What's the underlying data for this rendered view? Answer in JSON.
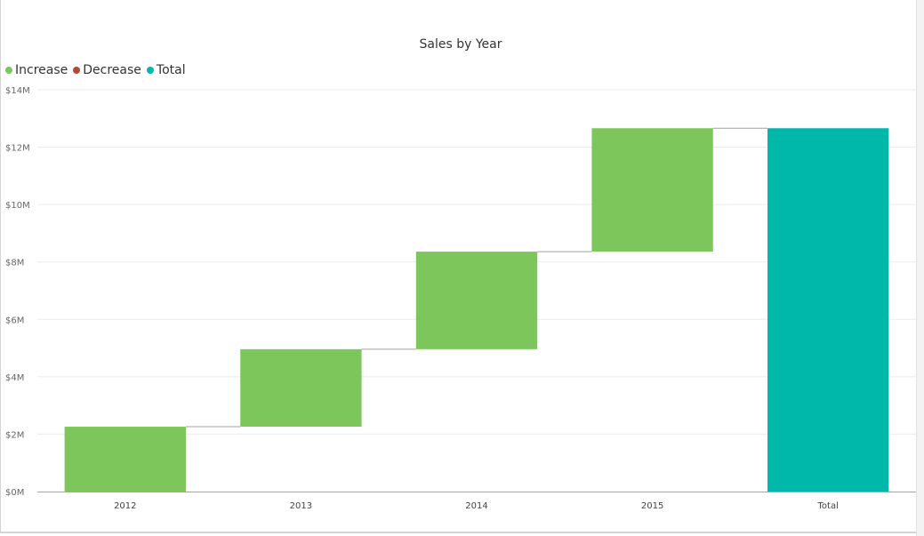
{
  "chart_data": {
    "type": "waterfall",
    "title": "Sales by Year",
    "legend": {
      "position": "top-left",
      "entries": [
        {
          "label": "Increase",
          "color": "#7dc65c"
        },
        {
          "label": "Decrease",
          "color": "#b5473a"
        },
        {
          "label": "Total",
          "color": "#00b8a9"
        }
      ]
    },
    "categories": [
      "2012",
      "2013",
      "2014",
      "2015",
      "Total"
    ],
    "increments": [
      2.26,
      2.7,
      3.4,
      4.3
    ],
    "total": 12.66,
    "units": "$M",
    "ylim": [
      0,
      14
    ],
    "yticks": [
      0,
      2,
      4,
      6,
      8,
      10,
      12,
      14
    ],
    "ytick_labels": [
      "$0M",
      "$2M",
      "$4M",
      "$6M",
      "$8M",
      "$10M",
      "$12M",
      "$14M"
    ],
    "grid": true,
    "colors": {
      "increase": "#7dc65c",
      "decrease": "#b5473a",
      "total": "#00b8a9",
      "gridline": "#ebebeb",
      "axis": "#a6a6a6",
      "connector": "#a0a0a0"
    }
  }
}
